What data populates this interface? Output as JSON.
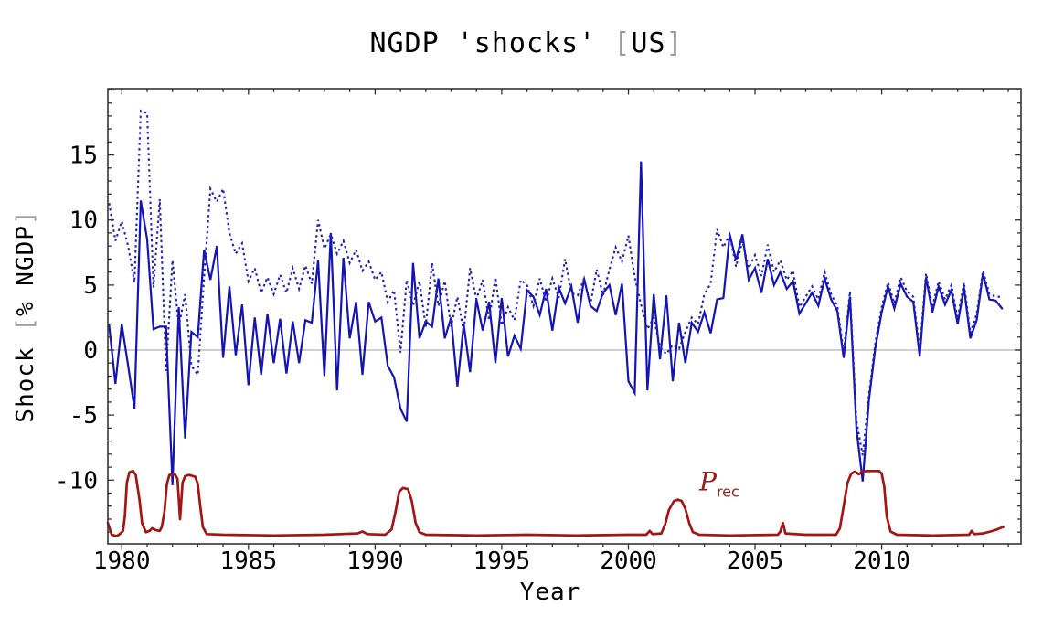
{
  "page": {
    "background": "#ffffff"
  },
  "title": {
    "full": "NGDP 'shocks' [US]",
    "prefix": "NGDP 'shocks' ",
    "bracket_open": "[",
    "region": "US",
    "bracket_close": "]"
  },
  "axes": {
    "x_label": "Year",
    "y_label_prefix": "Shock ",
    "y_label_bracket_open": "[",
    "y_label_inner": "% NGDP",
    "y_label_bracket_close": "]",
    "x_tick_labels": [
      "1980",
      "1985",
      "1990",
      "1995",
      "2000",
      "2005",
      "2010"
    ],
    "y_tick_labels": [
      "15",
      "10",
      "5",
      "0",
      "-5",
      "-10"
    ]
  },
  "annotation": {
    "symbol": "P",
    "subscript": "rec"
  },
  "colors": {
    "solid_line": "#1414b4",
    "dotted_line": "#2121bb",
    "recession_line": "#a31515",
    "annotation_text": "#9b1b1b",
    "gridline": "#c8c8c8",
    "frame": "#333333",
    "bracket_gray": "#9a9a9a",
    "background": "#ffffff"
  },
  "chart_data": {
    "type": "line",
    "title": "NGDP 'shocks' [US]",
    "xlabel": "Year",
    "ylabel": "Shock [% NGDP]",
    "xlim": [
      1979.45,
      2015.5
    ],
    "ylim": [
      -14.9,
      20.1
    ],
    "grid": "zero-line-only",
    "gridlines_y": [
      0
    ],
    "legend": "none",
    "x_major_ticks": [
      1980,
      1985,
      1990,
      1995,
      2000,
      2005,
      2010
    ],
    "x_minor_tick_step": 1,
    "y_major_ticks": [
      15,
      10,
      5,
      0,
      -5,
      -10
    ],
    "y_minor_tick_step": 1,
    "annotation": {
      "text": "P_rec",
      "x": 2002.8,
      "y": -10.8,
      "color": "#9b1b1b"
    },
    "series": [
      {
        "id": "ngdp-shock-solid",
        "style": "solid",
        "color": "#1414b4",
        "width": 2.2,
        "t_start": 1979.5,
        "t_step": 0.25,
        "values": [
          1.9,
          -2.6,
          2.0,
          -1.2,
          -4.5,
          11.5,
          8.5,
          1.6,
          1.8,
          1.8,
          -10.4,
          3.3,
          -6.8,
          1.4,
          1.0,
          7.7,
          5.4,
          8.0,
          -0.6,
          4.9,
          -0.4,
          3.5,
          -2.7,
          2.5,
          -1.9,
          2.8,
          -1.0,
          2.4,
          -1.8,
          2.2,
          -1.0,
          2.3,
          2.1,
          6.9,
          -2.0,
          9.0,
          -3.1,
          7.1,
          0.9,
          3.7,
          -1.9,
          3.7,
          2.2,
          2.5,
          -1.2,
          -2.1,
          -4.5,
          -5.5,
          6.7,
          0.9,
          2.2,
          1.8,
          5.5,
          0.9,
          2.5,
          -2.8,
          2.0,
          -1.7,
          3.9,
          1.5,
          3.7,
          -1.0,
          4.0,
          -0.5,
          1.1,
          0.1,
          4.6,
          4.1,
          2.7,
          4.7,
          1.5,
          4.8,
          3.6,
          4.9,
          2.1,
          5.5,
          3.4,
          3.0,
          4.4,
          5.0,
          2.7,
          5.1,
          -2.4,
          -3.3,
          14.5,
          -3.1,
          4.3,
          -0.7,
          4.2,
          -2.4,
          2.1,
          -1.0,
          2.1,
          1.4,
          2.9,
          1.3,
          3.9,
          4.0,
          8.9,
          6.9,
          8.9,
          5.4,
          6.3,
          4.4,
          7.0,
          5.0,
          6.0,
          4.7,
          5.3,
          2.8,
          3.6,
          4.4,
          3.4,
          5.5,
          3.9,
          3.0,
          -0.6,
          4.1,
          -6.0,
          -10.1,
          -3.8,
          0.2,
          2.9,
          4.9,
          3.2,
          5.1,
          4.1,
          3.7,
          -0.5,
          5.6,
          2.9,
          4.9,
          3.5,
          4.6,
          2.0,
          4.8,
          0.9,
          2.3,
          5.9,
          3.9,
          3.8,
          3.2
        ]
      },
      {
        "id": "ngdp-shock-dotted",
        "style": "dotted",
        "color": "#2121bb",
        "width": 2.1,
        "t_start": 1979.5,
        "t_step": 0.25,
        "values": [
          11.3,
          8.4,
          9.9,
          8.0,
          5.2,
          18.4,
          18.2,
          4.8,
          11.6,
          -1.6,
          6.9,
          1.8,
          4.3,
          -1.2,
          -1.9,
          5.6,
          12.4,
          11.4,
          12.4,
          9.0,
          7.4,
          8.2,
          5.3,
          6.3,
          4.4,
          5.6,
          4.3,
          5.8,
          4.4,
          6.3,
          4.7,
          6.5,
          5.1,
          10.0,
          7.8,
          8.9,
          7.4,
          8.4,
          6.7,
          7.7,
          6.1,
          6.8,
          5.4,
          6.0,
          3.7,
          4.6,
          -0.2,
          5.4,
          3.4,
          5.3,
          1.8,
          6.7,
          3.4,
          5.3,
          1.8,
          4.1,
          1.4,
          6.3,
          3.9,
          5.4,
          2.3,
          5.6,
          1.9,
          3.3,
          2.3,
          5.4,
          5.0,
          3.4,
          5.5,
          3.7,
          5.5,
          4.0,
          7.0,
          4.4,
          4.2,
          5.5,
          3.5,
          6.2,
          4.2,
          6.2,
          7.9,
          6.8,
          8.8,
          5.6,
          3.5,
          1.6,
          2.5,
          0.2,
          -0.3,
          0.4,
          0.1,
          1.4,
          2.5,
          2.0,
          4.3,
          5.1,
          9.3,
          7.9,
          8.9,
          6.4,
          8.4,
          6.3,
          7.3,
          5.7,
          8.1,
          6.0,
          6.9,
          5.4,
          6.1,
          3.3,
          4.1,
          4.9,
          3.9,
          6.0,
          4.3,
          3.4,
          -0.2,
          4.5,
          -5.4,
          -8.1,
          -3.4,
          0.6,
          3.3,
          5.2,
          3.6,
          5.6,
          4.5,
          4.1,
          0.0,
          5.9,
          3.3,
          5.3,
          3.9,
          5.0,
          2.4,
          5.2,
          1.3,
          2.8,
          6.1,
          4.3,
          4.1,
          4.1
        ]
      },
      {
        "id": "recession-indicator-red",
        "style": "smooth",
        "color": "#a31515",
        "width": 2.7,
        "points": [
          [
            1979.45,
            -13.3
          ],
          [
            1979.6,
            -14.2
          ],
          [
            1979.8,
            -14.3
          ],
          [
            1979.95,
            -14.1
          ],
          [
            1980.05,
            -13.9
          ],
          [
            1980.12,
            -12.8
          ],
          [
            1980.2,
            -10.2
          ],
          [
            1980.3,
            -9.4
          ],
          [
            1980.45,
            -9.3
          ],
          [
            1980.55,
            -9.6
          ],
          [
            1980.7,
            -11.5
          ],
          [
            1980.8,
            -13.3
          ],
          [
            1980.95,
            -14.0
          ],
          [
            1981.1,
            -13.9
          ],
          [
            1981.2,
            -13.7
          ],
          [
            1981.35,
            -13.85
          ],
          [
            1981.5,
            -13.9
          ],
          [
            1981.58,
            -13.6
          ],
          [
            1981.68,
            -12.5
          ],
          [
            1981.78,
            -10.3
          ],
          [
            1981.88,
            -9.6
          ],
          [
            1982.1,
            -9.55
          ],
          [
            1982.2,
            -9.9
          ],
          [
            1982.3,
            -13.0
          ],
          [
            1982.4,
            -10.2
          ],
          [
            1982.5,
            -9.7
          ],
          [
            1982.65,
            -9.6
          ],
          [
            1982.9,
            -9.75
          ],
          [
            1983.0,
            -10.3
          ],
          [
            1983.1,
            -12.0
          ],
          [
            1983.2,
            -13.6
          ],
          [
            1983.35,
            -14.15
          ],
          [
            1984.0,
            -14.2
          ],
          [
            1986.0,
            -14.25
          ],
          [
            1988.0,
            -14.2
          ],
          [
            1989.3,
            -14.1
          ],
          [
            1989.5,
            -13.95
          ],
          [
            1989.7,
            -14.15
          ],
          [
            1990.4,
            -14.2
          ],
          [
            1990.65,
            -13.8
          ],
          [
            1990.8,
            -12.5
          ],
          [
            1990.95,
            -10.9
          ],
          [
            1991.1,
            -10.6
          ],
          [
            1991.3,
            -10.7
          ],
          [
            1991.45,
            -11.6
          ],
          [
            1991.6,
            -13.3
          ],
          [
            1991.75,
            -14.0
          ],
          [
            1992.0,
            -14.2
          ],
          [
            1994.0,
            -14.25
          ],
          [
            1996.0,
            -14.2
          ],
          [
            1998.0,
            -14.25
          ],
          [
            2000.0,
            -14.2
          ],
          [
            2000.7,
            -14.2
          ],
          [
            2000.85,
            -13.9
          ],
          [
            2000.95,
            -14.15
          ],
          [
            2001.3,
            -14.1
          ],
          [
            2001.45,
            -13.4
          ],
          [
            2001.6,
            -12.3
          ],
          [
            2001.8,
            -11.6
          ],
          [
            2001.95,
            -11.5
          ],
          [
            2002.1,
            -11.6
          ],
          [
            2002.25,
            -12.2
          ],
          [
            2002.4,
            -13.3
          ],
          [
            2002.55,
            -14.0
          ],
          [
            2002.8,
            -14.2
          ],
          [
            2004.0,
            -14.25
          ],
          [
            2005.9,
            -14.2
          ],
          [
            2006.0,
            -13.95
          ],
          [
            2006.1,
            -13.3
          ],
          [
            2006.2,
            -14.1
          ],
          [
            2007.0,
            -14.2
          ],
          [
            2008.2,
            -14.2
          ],
          [
            2008.35,
            -13.7
          ],
          [
            2008.5,
            -12.0
          ],
          [
            2008.65,
            -10.2
          ],
          [
            2008.8,
            -9.5
          ],
          [
            2008.95,
            -9.35
          ],
          [
            2009.1,
            -9.55
          ],
          [
            2009.2,
            -9.4
          ],
          [
            2009.4,
            -9.3
          ],
          [
            2009.9,
            -9.3
          ],
          [
            2010.0,
            -9.5
          ],
          [
            2010.1,
            -10.5
          ],
          [
            2010.2,
            -12.8
          ],
          [
            2010.35,
            -13.95
          ],
          [
            2010.6,
            -14.2
          ],
          [
            2012.0,
            -14.25
          ],
          [
            2013.45,
            -14.2
          ],
          [
            2013.55,
            -13.9
          ],
          [
            2013.65,
            -14.15
          ],
          [
            2014.0,
            -14.1
          ],
          [
            2014.3,
            -13.95
          ],
          [
            2014.55,
            -13.8
          ],
          [
            2014.8,
            -13.6
          ]
        ]
      }
    ]
  }
}
